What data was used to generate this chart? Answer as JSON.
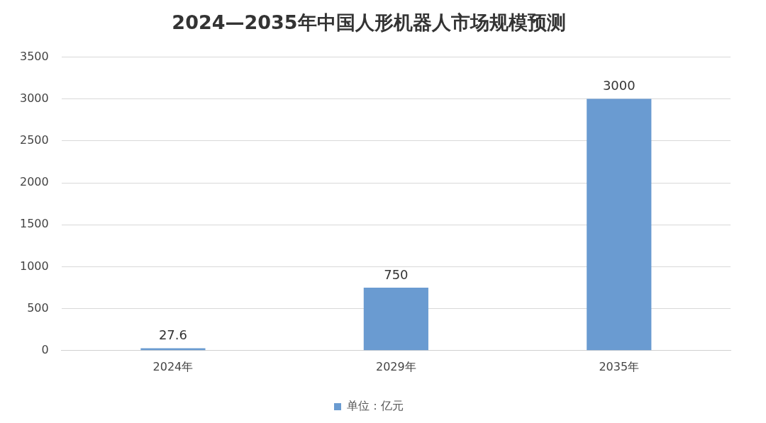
{
  "chart_data": {
    "type": "bar",
    "title": "2024—2035年中国人形机器人市场规模预测",
    "categories": [
      "2024年",
      "2029年",
      "2035年"
    ],
    "series": [
      {
        "name": "单位：亿元",
        "color": "#6a9bd1",
        "values": [
          27.6,
          750,
          3000
        ]
      }
    ],
    "ylim": [
      0,
      3500
    ],
    "yticks": [
      0,
      500,
      1000,
      1500,
      2000,
      2500,
      3000,
      3500
    ],
    "grid": "y",
    "legend": "bottom",
    "data_labels": true
  }
}
